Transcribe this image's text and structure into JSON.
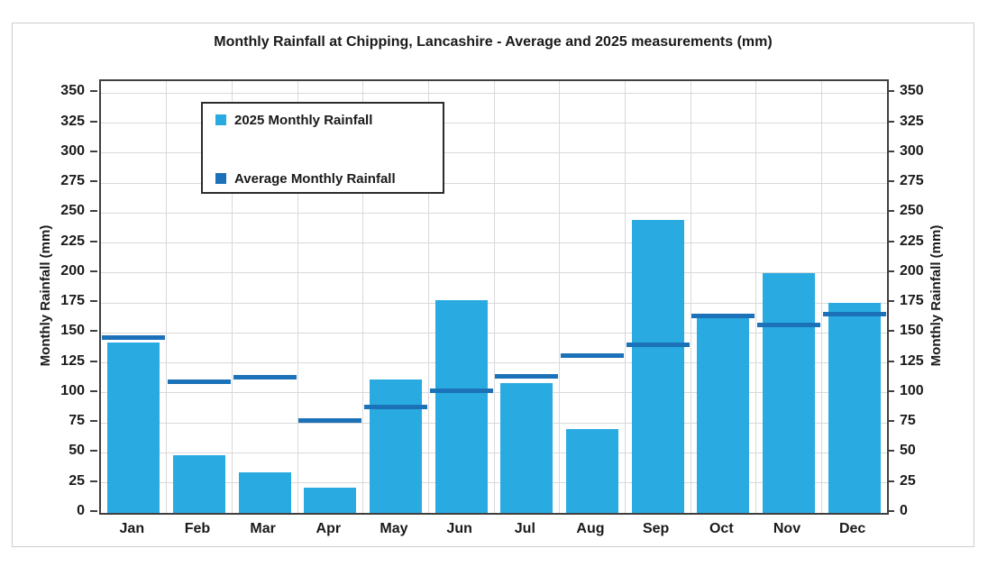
{
  "chart": {
    "title": "Monthly Rainfall at Chipping, Lancashire - Average and 2025 measurements (mm)",
    "y_axis_label_left": "Monthly Rainfall (mm)",
    "y_axis_label_right": "Monthly Rainfall (mm)",
    "legend": {
      "items": [
        {
          "label": "2025 Monthly Rainfall",
          "color": "#29ABE2"
        },
        {
          "label": "Average Monthly Rainfall",
          "color": "#1C72B8"
        }
      ]
    },
    "colors": {
      "bar_fill": "#29ABE2",
      "average_line": "#1C72B8",
      "gridline": "#d9d9d9",
      "plot_border": "#3f3f3f",
      "text": "#1a1a1a"
    }
  },
  "chart_data": {
    "type": "bar",
    "title": "Monthly Rainfall at Chipping, Lancashire - Average and 2025 measurements (mm)",
    "categories": [
      "Jan",
      "Feb",
      "Mar",
      "Apr",
      "May",
      "Jun",
      "Jul",
      "Aug",
      "Sep",
      "Oct",
      "Nov",
      "Dec"
    ],
    "series": [
      {
        "name": "2025 Monthly Rainfall",
        "type": "bar",
        "color": "#29ABE2",
        "values": [
          142,
          48,
          34,
          21,
          111,
          177,
          108,
          70,
          244,
          163,
          200,
          175
        ]
      },
      {
        "name": "Average Monthly Rainfall",
        "type": "line-segment",
        "color": "#1C72B8",
        "values": [
          146,
          109,
          113,
          77,
          88,
          102,
          114,
          131,
          140,
          164,
          157,
          166
        ]
      }
    ],
    "xlabel": "",
    "ylabel": "Monthly Rainfall (mm)",
    "ylabel_right": "Monthly Rainfall (mm)",
    "ylim": [
      0,
      360
    ],
    "yticks": [
      0,
      25,
      50,
      75,
      100,
      125,
      150,
      175,
      200,
      225,
      250,
      275,
      300,
      325,
      350
    ],
    "grid": true,
    "legend_position": "upper-left-inside"
  }
}
